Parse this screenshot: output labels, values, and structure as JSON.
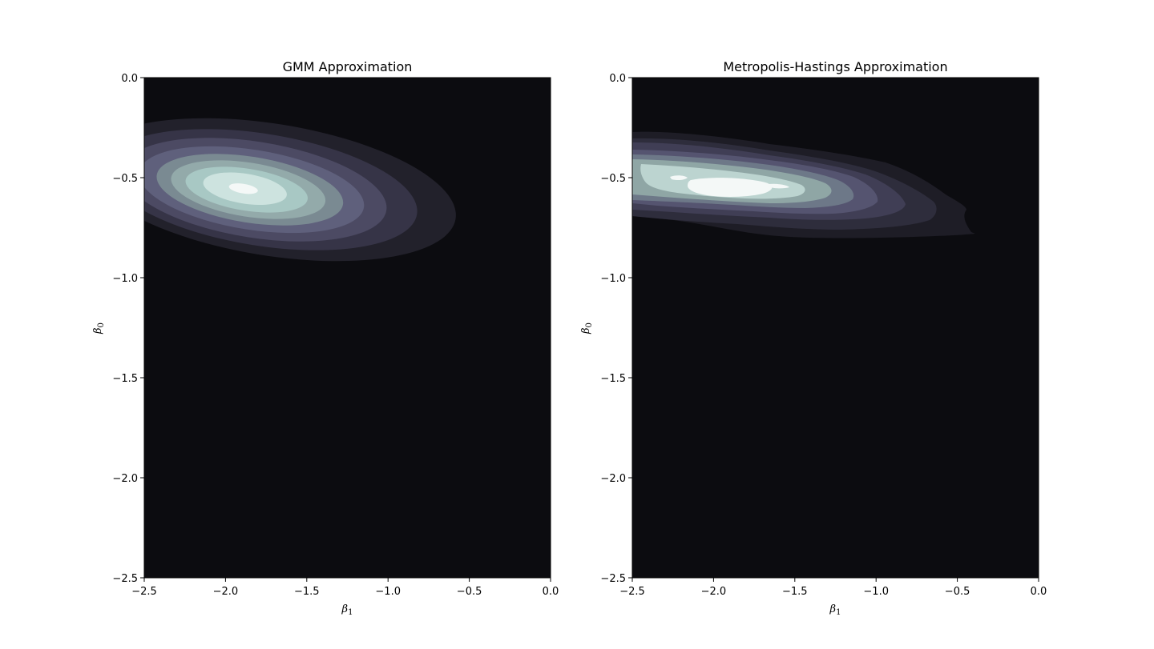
{
  "chart_data": [
    {
      "type": "contour",
      "title": "GMM Approximation",
      "xlabel_symbol": "β",
      "xlabel_sub": "1",
      "ylabel_symbol": "β",
      "ylabel_sub": "0",
      "xlim": [
        -2.5,
        0.0
      ],
      "ylim": [
        -2.5,
        0.0
      ],
      "xticks": [
        -2.5,
        -2.0,
        -1.5,
        -1.0,
        -0.5,
        0.0
      ],
      "yticks": [
        0.0,
        -0.5,
        -1.0,
        -1.5,
        -2.0,
        -2.5
      ],
      "xtick_labels": [
        "−2.5",
        "−2.0",
        "−1.5",
        "−1.0",
        "−0.5",
        "0.0"
      ],
      "ytick_labels": [
        "0.0",
        "−0.5",
        "−1.0",
        "−1.5",
        "−2.0",
        "−2.5"
      ],
      "grid": false,
      "colormap": "bone",
      "background_color": "#0c0c10",
      "level_colors": [
        "#22212b",
        "#363447",
        "#4c4a63",
        "#5f607c",
        "#7a8a92",
        "#93aaaa",
        "#a8c8c4",
        "#cde3df",
        "#f4f8f7"
      ],
      "density": {
        "kind": "ellipse",
        "mode": [
          -1.85,
          -0.56
        ],
        "contour_levels": [
          {
            "center": [
              -1.72,
              -0.56
            ],
            "semi_axes": [
              1.15,
              0.33
            ],
            "angle_deg": -9
          },
          {
            "center": [
              -1.78,
              -0.56
            ],
            "semi_axes": [
              0.97,
              0.28
            ],
            "angle_deg": -9
          },
          {
            "center": [
              -1.82,
              -0.56
            ],
            "semi_axes": [
              0.82,
              0.24
            ],
            "angle_deg": -9
          },
          {
            "center": [
              -1.84,
              -0.56
            ],
            "semi_axes": [
              0.7,
              0.2
            ],
            "angle_deg": -9
          },
          {
            "center": [
              -1.85,
              -0.56
            ],
            "semi_axes": [
              0.58,
              0.165
            ],
            "angle_deg": -9
          },
          {
            "center": [
              -1.86,
              -0.56
            ],
            "semi_axes": [
              0.48,
              0.135
            ],
            "angle_deg": -9
          },
          {
            "center": [
              -1.87,
              -0.56
            ],
            "semi_axes": [
              0.38,
              0.105
            ],
            "angle_deg": -9
          },
          {
            "center": [
              -1.88,
              -0.555
            ],
            "semi_axes": [
              0.26,
              0.075
            ],
            "angle_deg": -9
          },
          {
            "center": [
              -1.89,
              -0.555
            ],
            "semi_axes": [
              0.09,
              0.024
            ],
            "angle_deg": -9
          }
        ]
      }
    },
    {
      "type": "contour",
      "title": "Metropolis-Hastings Approximation",
      "xlabel_symbol": "β",
      "xlabel_sub": "1",
      "ylabel_symbol": "β",
      "ylabel_sub": "0",
      "xlim": [
        -2.5,
        0.0
      ],
      "ylim": [
        -2.5,
        0.0
      ],
      "xticks": [
        -2.5,
        -2.0,
        -1.5,
        -1.0,
        -0.5,
        0.0
      ],
      "yticks": [
        0.0,
        -0.5,
        -1.0,
        -1.5,
        -2.0,
        -2.5
      ],
      "xtick_labels": [
        "−2.5",
        "−2.0",
        "−1.5",
        "−1.0",
        "−0.5",
        "0.0"
      ],
      "ytick_labels": [
        "0.0",
        "−0.5",
        "−1.0",
        "−1.5",
        "−2.0",
        "−2.5"
      ],
      "grid": false,
      "colormap": "bone",
      "background_color": "#0c0c10",
      "level_colors": [
        "#1e1d26",
        "#2e2d3c",
        "#403e55",
        "#555470",
        "#6d7888",
        "#8fa6a5",
        "#bcd4d0",
        "#f4f8f7"
      ],
      "density": {
        "kind": "kde",
        "mode": [
          -1.95,
          -0.55
        ],
        "x_extent": [
          -2.5,
          -0.38
        ],
        "y_extent": [
          -0.79,
          -0.27
        ]
      }
    }
  ]
}
